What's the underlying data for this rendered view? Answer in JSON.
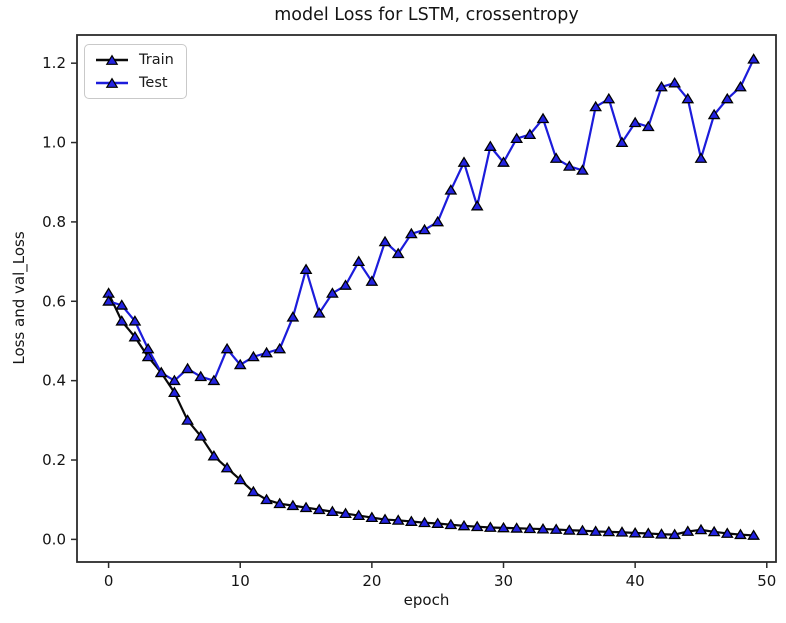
{
  "chart_data": {
    "type": "line",
    "title": "model Loss for LSTM, crossentropy",
    "xlabel": "epoch",
    "ylabel": "Loss and val_Loss",
    "grid": false,
    "legend_position": "upper left",
    "marker": "triangle-up",
    "x_ticks": [
      "0",
      "10",
      "20",
      "30",
      "40",
      "50"
    ],
    "x_tick_values": [
      0,
      10,
      20,
      30,
      40,
      50
    ],
    "y_ticks": [
      "0.0",
      "0.2",
      "0.4",
      "0.6",
      "0.8",
      "1.0",
      "1.2"
    ],
    "y_tick_values": [
      0.0,
      0.2,
      0.4,
      0.6,
      0.8,
      1.0,
      1.2
    ],
    "xlim": [
      -2.4,
      50.7
    ],
    "ylim": [
      -0.057,
      1.271
    ],
    "colors": {
      "train_line": "#0a0a0a",
      "test_line": "#1c1cdb",
      "marker_fill": "#2323e0",
      "marker_edge": "#000000",
      "spine": "#2b2b2b"
    },
    "x": [
      0,
      1,
      2,
      3,
      4,
      5,
      6,
      7,
      8,
      9,
      10,
      11,
      12,
      13,
      14,
      15,
      16,
      17,
      18,
      19,
      20,
      21,
      22,
      23,
      24,
      25,
      26,
      27,
      28,
      29,
      30,
      31,
      32,
      33,
      34,
      35,
      36,
      37,
      38,
      39,
      40,
      41,
      42,
      43,
      44,
      45,
      46,
      47,
      48,
      49
    ],
    "series": [
      {
        "name": "Train",
        "line_color": "#0a0a0a",
        "values": [
          0.62,
          0.55,
          0.51,
          0.46,
          0.42,
          0.37,
          0.3,
          0.26,
          0.21,
          0.18,
          0.15,
          0.12,
          0.1,
          0.09,
          0.085,
          0.08,
          0.075,
          0.07,
          0.065,
          0.06,
          0.055,
          0.05,
          0.048,
          0.045,
          0.042,
          0.04,
          0.037,
          0.034,
          0.032,
          0.03,
          0.029,
          0.028,
          0.027,
          0.026,
          0.025,
          0.023,
          0.022,
          0.02,
          0.019,
          0.018,
          0.016,
          0.015,
          0.013,
          0.012,
          0.02,
          0.024,
          0.019,
          0.015,
          0.012,
          0.01
        ]
      },
      {
        "name": "Test",
        "line_color": "#1c1cdb",
        "values": [
          0.6,
          0.59,
          0.55,
          0.48,
          0.42,
          0.4,
          0.43,
          0.41,
          0.4,
          0.48,
          0.44,
          0.46,
          0.47,
          0.48,
          0.56,
          0.68,
          0.57,
          0.62,
          0.64,
          0.7,
          0.65,
          0.75,
          0.72,
          0.77,
          0.78,
          0.8,
          0.88,
          0.95,
          0.84,
          0.99,
          0.95,
          1.01,
          1.02,
          1.06,
          0.96,
          0.94,
          0.93,
          1.09,
          1.11,
          1.0,
          1.05,
          1.04,
          1.14,
          1.15,
          1.11,
          0.96,
          1.07,
          1.11,
          1.14,
          1.21
        ]
      }
    ]
  }
}
